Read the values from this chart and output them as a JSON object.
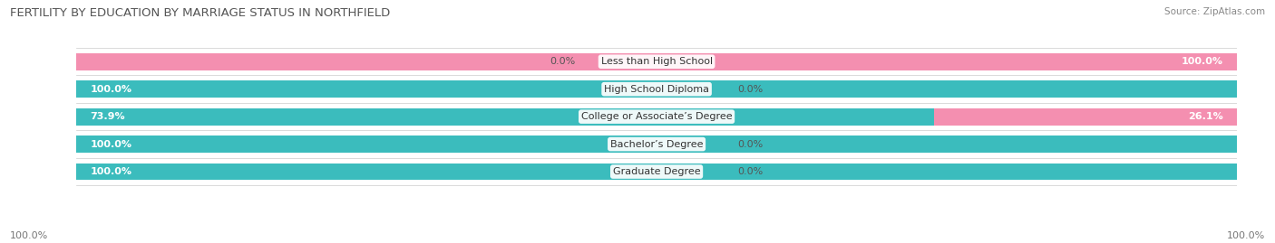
{
  "title": "FERTILITY BY EDUCATION BY MARRIAGE STATUS IN NORTHFIELD",
  "source": "Source: ZipAtlas.com",
  "categories": [
    "Less than High School",
    "High School Diploma",
    "College or Associate’s Degree",
    "Bachelor’s Degree",
    "Graduate Degree"
  ],
  "married": [
    0.0,
    100.0,
    73.9,
    100.0,
    100.0
  ],
  "unmarried": [
    100.0,
    0.0,
    26.1,
    0.0,
    0.0
  ],
  "married_color": "#3BBCBD",
  "unmarried_color": "#F48FB0",
  "bg_color": "#FFFFFF",
  "bar_bg_color": "#E8E8E8",
  "row_bg_color": "#F5F5F5",
  "title_fontsize": 9.5,
  "label_fontsize": 8,
  "legend_fontsize": 8.5,
  "source_fontsize": 7.5,
  "value_fontsize": 8
}
